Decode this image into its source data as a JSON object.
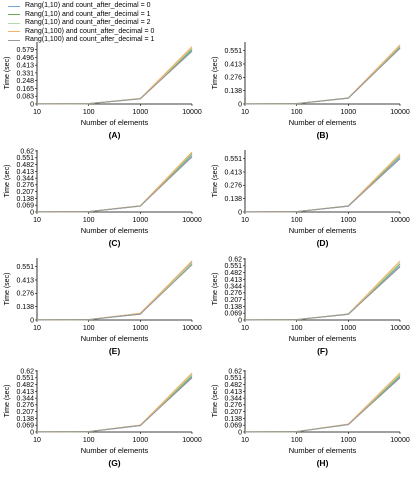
{
  "legend": [
    {
      "name": "Rang(1,10) and count_after_decimal = 0",
      "color": "#6fa8dc"
    },
    {
      "name": "Rang(1,10) and count_after_decimal = 1",
      "color": "#6aa84f"
    },
    {
      "name": "Rang(1,10) and count_after_decimal = 2",
      "color": "#b6d7a8"
    },
    {
      "name": "Rang(1,100) and count_after_decimal = 0",
      "color": "#f6b26b"
    },
    {
      "name": "Rang(1,100) and count_after_decimal = 1",
      "color": "#999999"
    }
  ],
  "chart_data": [
    {
      "type": "line",
      "title": "(A)",
      "xlabel": "Number of elements",
      "ylabel": "Time (sec)",
      "x_scale": "log",
      "x": [
        10,
        100,
        1000,
        10000
      ],
      "yticks": [
        0,
        0.083,
        0.165,
        0.248,
        0.331,
        0.413,
        0.496,
        0.579
      ],
      "ylim": [
        0,
        0.66
      ],
      "series": [
        {
          "name": "Rang(1,10) and count_after_decimal = 0",
          "values": [
            0.0003,
            0.004,
            0.055,
            0.57
          ]
        },
        {
          "name": "Rang(1,10) and count_after_decimal = 1",
          "values": [
            0.0003,
            0.004,
            0.057,
            0.585
          ]
        },
        {
          "name": "Rang(1,10) and count_after_decimal = 2",
          "values": [
            0.0003,
            0.004,
            0.058,
            0.595
          ]
        },
        {
          "name": "Rang(1,100) and count_after_decimal = 0",
          "values": [
            0.0003,
            0.004,
            0.058,
            0.61
          ]
        },
        {
          "name": "Rang(1,100) and count_after_decimal = 1",
          "values": [
            0.0003,
            0.004,
            0.056,
            0.56
          ]
        }
      ]
    },
    {
      "type": "line",
      "title": "(B)",
      "xlabel": "Number of elements",
      "ylabel": "Time (sec)",
      "x_scale": "log",
      "x": [
        10,
        100,
        1000,
        10000
      ],
      "yticks": [
        0,
        0.138,
        0.276,
        0.413,
        0.551
      ],
      "ylim": [
        0,
        0.64
      ],
      "series": [
        {
          "name": "Rang(1,10) and count_after_decimal = 0",
          "values": [
            0.0003,
            0.004,
            0.06,
            0.58
          ]
        },
        {
          "name": "Rang(1,10) and count_after_decimal = 1",
          "values": [
            0.0003,
            0.004,
            0.062,
            0.595
          ]
        },
        {
          "name": "Rang(1,10) and count_after_decimal = 2",
          "values": [
            0.0003,
            0.004,
            0.063,
            0.6
          ]
        },
        {
          "name": "Rang(1,100) and count_after_decimal = 0",
          "values": [
            0.0003,
            0.004,
            0.063,
            0.61
          ]
        },
        {
          "name": "Rang(1,100) and count_after_decimal = 1",
          "values": [
            0.0003,
            0.004,
            0.061,
            0.575
          ]
        }
      ]
    },
    {
      "type": "line",
      "title": "(C)",
      "xlabel": "Number of elements",
      "ylabel": "Time (sec)",
      "x_scale": "log",
      "x": [
        10,
        100,
        1000,
        10000
      ],
      "yticks": [
        0,
        0.069,
        0.138,
        0.207,
        0.276,
        0.344,
        0.413,
        0.482,
        0.551,
        0.62
      ],
      "ylim": [
        0,
        0.63
      ],
      "series": [
        {
          "name": "Rang(1,10) and count_after_decimal = 0",
          "values": [
            0.0003,
            0.004,
            0.06,
            0.57
          ]
        },
        {
          "name": "Rang(1,10) and count_after_decimal = 1",
          "values": [
            0.0003,
            0.004,
            0.062,
            0.59
          ]
        },
        {
          "name": "Rang(1,10) and count_after_decimal = 2",
          "values": [
            0.0003,
            0.004,
            0.063,
            0.6
          ]
        },
        {
          "name": "Rang(1,100) and count_after_decimal = 0",
          "values": [
            0.0003,
            0.004,
            0.063,
            0.61
          ]
        },
        {
          "name": "Rang(1,100) and count_after_decimal = 1",
          "values": [
            0.0003,
            0.004,
            0.061,
            0.56
          ]
        }
      ]
    },
    {
      "type": "line",
      "title": "(D)",
      "xlabel": "Number of elements",
      "ylabel": "Time (sec)",
      "x_scale": "log",
      "x": [
        10,
        100,
        1000,
        10000
      ],
      "yticks": [
        0,
        0.138,
        0.276,
        0.413,
        0.551
      ],
      "ylim": [
        0,
        0.64
      ],
      "series": [
        {
          "name": "Rang(1,10) and count_after_decimal = 0",
          "values": [
            0.0003,
            0.004,
            0.06,
            0.56
          ]
        },
        {
          "name": "Rang(1,10) and count_after_decimal = 1",
          "values": [
            0.0003,
            0.004,
            0.062,
            0.58
          ]
        },
        {
          "name": "Rang(1,10) and count_after_decimal = 2",
          "values": [
            0.0003,
            0.004,
            0.063,
            0.59
          ]
        },
        {
          "name": "Rang(1,100) and count_after_decimal = 0",
          "values": [
            0.0003,
            0.004,
            0.063,
            0.6
          ]
        },
        {
          "name": "Rang(1,100) and count_after_decimal = 1",
          "values": [
            0.0003,
            0.004,
            0.061,
            0.55
          ]
        }
      ]
    },
    {
      "type": "line",
      "title": "(E)",
      "xlabel": "Number of elements",
      "ylabel": "Time (sec)",
      "x_scale": "log",
      "x": [
        10,
        100,
        1000,
        10000
      ],
      "yticks": [
        0,
        0.138,
        0.276,
        0.413,
        0.551
      ],
      "ylim": [
        0,
        0.64
      ],
      "series": [
        {
          "name": "Rang(1,10) and count_after_decimal = 0",
          "values": [
            0.0003,
            0.004,
            0.06,
            0.6
          ]
        },
        {
          "name": "Rang(1,10) and count_after_decimal = 1",
          "values": [
            0.0003,
            0.004,
            0.065,
            0.58
          ]
        },
        {
          "name": "Rang(1,10) and count_after_decimal = 2",
          "values": [
            0.0003,
            0.004,
            0.066,
            0.59
          ]
        },
        {
          "name": "Rang(1,100) and count_after_decimal = 0",
          "values": [
            0.0003,
            0.004,
            0.07,
            0.61
          ]
        },
        {
          "name": "Rang(1,100) and count_after_decimal = 1",
          "values": [
            0.0003,
            0.004,
            0.062,
            0.57
          ]
        }
      ]
    },
    {
      "type": "line",
      "title": "(F)",
      "xlabel": "Number of elements",
      "ylabel": "Time (sec)",
      "x_scale": "log",
      "x": [
        10,
        100,
        1000,
        10000
      ],
      "yticks": [
        0,
        0.069,
        0.138,
        0.207,
        0.276,
        0.344,
        0.413,
        0.482,
        0.551,
        0.62
      ],
      "ylim": [
        0,
        0.63
      ],
      "series": [
        {
          "name": "Rang(1,10) and count_after_decimal = 0",
          "values": [
            0.0003,
            0.004,
            0.058,
            0.55
          ]
        },
        {
          "name": "Rang(1,10) and count_after_decimal = 1",
          "values": [
            0.0003,
            0.004,
            0.06,
            0.57
          ]
        },
        {
          "name": "Rang(1,10) and count_after_decimal = 2",
          "values": [
            0.0003,
            0.004,
            0.061,
            0.58
          ]
        },
        {
          "name": "Rang(1,100) and count_after_decimal = 0",
          "values": [
            0.0003,
            0.004,
            0.061,
            0.6
          ]
        },
        {
          "name": "Rang(1,100) and count_after_decimal = 1",
          "values": [
            0.0003,
            0.004,
            0.059,
            0.54
          ]
        }
      ]
    },
    {
      "type": "line",
      "title": "(G)",
      "xlabel": "Number of elements",
      "ylabel": "Time (sec)",
      "x_scale": "log",
      "x": [
        10,
        100,
        1000,
        10000
      ],
      "yticks": [
        0,
        0.069,
        0.138,
        0.207,
        0.276,
        0.344,
        0.413,
        0.482,
        0.551,
        0.62
      ],
      "ylim": [
        0,
        0.63
      ],
      "series": [
        {
          "name": "Rang(1,10) and count_after_decimal = 0",
          "values": [
            0.0003,
            0.004,
            0.065,
            0.56
          ]
        },
        {
          "name": "Rang(1,10) and count_after_decimal = 1",
          "values": [
            0.0003,
            0.004,
            0.068,
            0.575
          ]
        },
        {
          "name": "Rang(1,10) and count_after_decimal = 2",
          "values": [
            0.0003,
            0.004,
            0.069,
            0.585
          ]
        },
        {
          "name": "Rang(1,100) and count_after_decimal = 0",
          "values": [
            0.0003,
            0.004,
            0.07,
            0.6
          ]
        },
        {
          "name": "Rang(1,100) and count_after_decimal = 1",
          "values": [
            0.0003,
            0.004,
            0.066,
            0.55
          ]
        }
      ]
    },
    {
      "type": "line",
      "title": "(H)",
      "xlabel": "Number of elements",
      "ylabel": "Time (sec)",
      "x_scale": "log",
      "x": [
        10,
        100,
        1000,
        10000
      ],
      "yticks": [
        0,
        0.069,
        0.138,
        0.207,
        0.276,
        0.344,
        0.413,
        0.482,
        0.551,
        0.62
      ],
      "ylim": [
        0,
        0.63
      ],
      "series": [
        {
          "name": "Rang(1,10) and count_after_decimal = 0",
          "values": [
            0.0003,
            0.004,
            0.075,
            0.56
          ]
        },
        {
          "name": "Rang(1,10) and count_after_decimal = 1",
          "values": [
            0.0003,
            0.004,
            0.078,
            0.575
          ]
        },
        {
          "name": "Rang(1,10) and count_after_decimal = 2",
          "values": [
            0.0003,
            0.004,
            0.079,
            0.585
          ]
        },
        {
          "name": "Rang(1,100) and count_after_decimal = 0",
          "values": [
            0.0003,
            0.004,
            0.08,
            0.6
          ]
        },
        {
          "name": "Rang(1,100) and count_after_decimal = 1",
          "values": [
            0.0003,
            0.004,
            0.076,
            0.55
          ]
        }
      ]
    }
  ]
}
